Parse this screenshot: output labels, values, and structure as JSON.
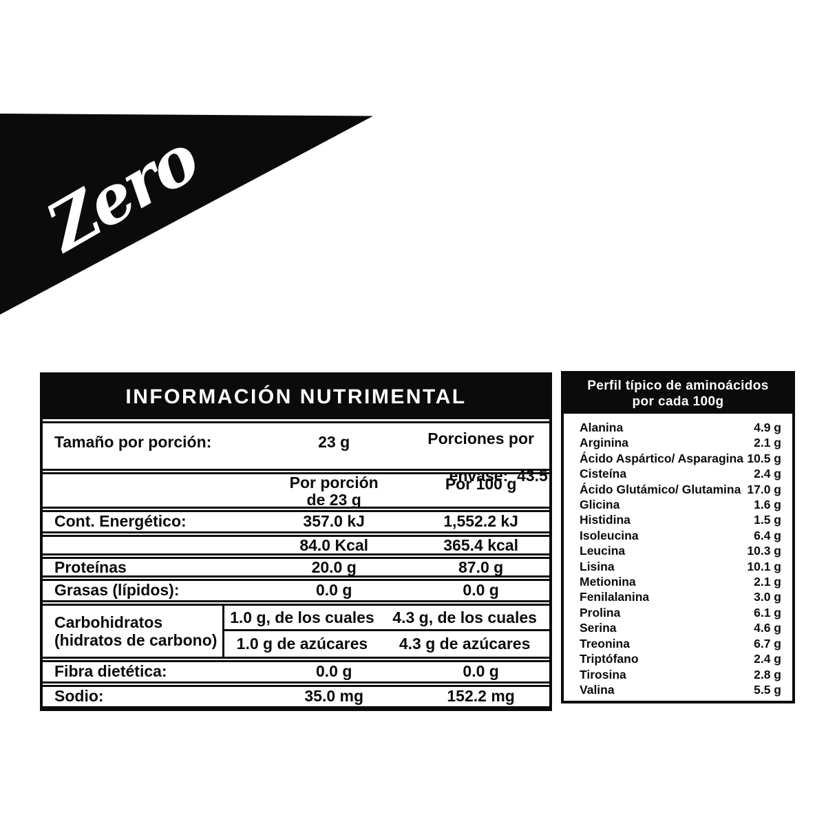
{
  "colors": {
    "ink": "#0b0b0b",
    "background": "#ffffff"
  },
  "brand": {
    "logo_text": "Zero"
  },
  "nutrition_table": {
    "title": "INFORMACIÓN NUTRIMENTAL",
    "serving_row": {
      "label": "Tamaño por porción:",
      "serving_size": "23 g",
      "servings_line1": "Porciones por",
      "servings_line2": "envase:  43.5"
    },
    "column_headers": {
      "mid_line1": "Por porción",
      "mid_line2": "de 23 g",
      "right": "Por 100 g"
    },
    "energy_kj": {
      "label": "Cont. Energético:",
      "per_serving": "357.0 kJ",
      "per_100g": "1,552.2 kJ"
    },
    "energy_kcal": {
      "label": "",
      "per_serving": "84.0 Kcal",
      "per_100g": "365.4 kcal"
    },
    "protein": {
      "label": "Proteínas",
      "per_serving": "20.0 g",
      "per_100g": "87.0 g"
    },
    "fat": {
      "label": "Grasas (lípidos):",
      "per_serving": "0.0 g",
      "per_100g": "0.0 g"
    },
    "carbs": {
      "label_line1": "Carbohidratos",
      "label_line2": "(hidratos de carbono)",
      "which_serving": "1.0 g, de los cuales",
      "which_100g": "4.3 g, de los cuales",
      "sugars_serving": "1.0 g de azúcares",
      "sugars_100g": "4.3 g de azúcares"
    },
    "fiber": {
      "label": "Fibra dietética:",
      "per_serving": "0.0 g",
      "per_100g": "0.0 g"
    },
    "sodium": {
      "label": "Sodio:",
      "per_serving": "35.0 mg",
      "per_100g": "152.2 mg"
    }
  },
  "amino_table": {
    "title_line1": "Perfil típico de aminoácidos",
    "title_line2": "por cada 100g",
    "rows": [
      {
        "name": "Alanina",
        "value": "4.9 g"
      },
      {
        "name": "Arginina",
        "value": "2.1 g"
      },
      {
        "name": "Ácido Aspártico/ Asparagina",
        "value": "10.5 g"
      },
      {
        "name": "Cisteína",
        "value": "2.4 g"
      },
      {
        "name": "Ácido Glutámico/ Glutamina",
        "value": "17.0 g"
      },
      {
        "name": "Glicina",
        "value": "1.6 g"
      },
      {
        "name": "Histidina",
        "value": "1.5 g"
      },
      {
        "name": "Isoleucina",
        "value": "6.4 g"
      },
      {
        "name": "Leucina",
        "value": "10.3 g"
      },
      {
        "name": "Lisina",
        "value": "10.1 g"
      },
      {
        "name": "Metionina",
        "value": "2.1 g"
      },
      {
        "name": "Fenilalanina",
        "value": "3.0 g"
      },
      {
        "name": "Prolina",
        "value": "6.1 g"
      },
      {
        "name": "Serina",
        "value": "4.6 g"
      },
      {
        "name": "Treonina",
        "value": "6.7 g"
      },
      {
        "name": "Triptófano",
        "value": "2.4 g"
      },
      {
        "name": "Tirosina",
        "value": "2.8 g"
      },
      {
        "name": "Valina",
        "value": "5.5 g"
      }
    ]
  }
}
